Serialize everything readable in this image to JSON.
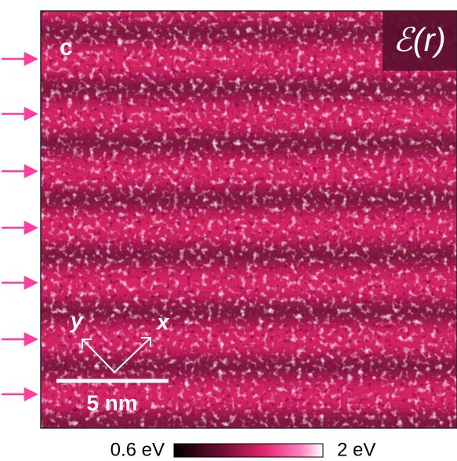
{
  "panel_label": "c",
  "map_label": "ℰ(r)",
  "axes": {
    "y": "y",
    "x": "x"
  },
  "scale_bar": "5 nm",
  "colorbar": {
    "min_label": "0.6 eV",
    "max_label": "2 eV"
  }
}
